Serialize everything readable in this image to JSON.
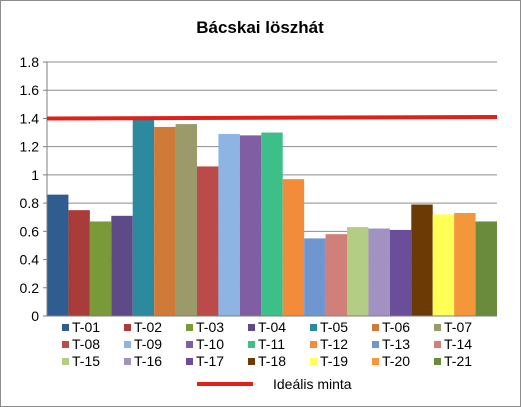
{
  "chart_data": {
    "type": "bar",
    "title": "Bácskai löszhát",
    "xlabel": "",
    "ylabel": "",
    "ylim": [
      0,
      1.8
    ],
    "yticks": [
      "0",
      "0.2",
      "0.4",
      "0.6",
      "0.8",
      "1",
      "1.2",
      "1.4",
      "1.6",
      "1.8"
    ],
    "grid": true,
    "legend_position": "bottom",
    "series": [
      {
        "name": "T-01",
        "value": 0.86,
        "color": "#2f5d8f"
      },
      {
        "name": "T-02",
        "value": 0.75,
        "color": "#a93c3a"
      },
      {
        "name": "T-03",
        "value": 0.67,
        "color": "#7a9a3a"
      },
      {
        "name": "T-04",
        "value": 0.71,
        "color": "#5e4a87"
      },
      {
        "name": "T-05",
        "value": 1.4,
        "color": "#2c8a9e"
      },
      {
        "name": "T-06",
        "value": 1.34,
        "color": "#d07a3a"
      },
      {
        "name": "T-07",
        "value": 1.36,
        "color": "#9a9a6a"
      },
      {
        "name": "T-08",
        "value": 1.06,
        "color": "#bb4a4a"
      },
      {
        "name": "T-09",
        "value": 1.29,
        "color": "#8db4e2"
      },
      {
        "name": "T-10",
        "value": 1.28,
        "color": "#7f5ea3"
      },
      {
        "name": "T-11",
        "value": 1.3,
        "color": "#3dbf8a"
      },
      {
        "name": "T-12",
        "value": 0.97,
        "color": "#f28c3a"
      },
      {
        "name": "T-13",
        "value": 0.55,
        "color": "#6f96cf"
      },
      {
        "name": "T-14",
        "value": 0.58,
        "color": "#d08078"
      },
      {
        "name": "T-15",
        "value": 0.63,
        "color": "#b3cd85"
      },
      {
        "name": "T-16",
        "value": 0.62,
        "color": "#a292c2"
      },
      {
        "name": "T-17",
        "value": 0.61,
        "color": "#6b4e99"
      },
      {
        "name": "T-18",
        "value": 0.79,
        "color": "#6b3a05"
      },
      {
        "name": "T-19",
        "value": 0.72,
        "color": "#ffff55"
      },
      {
        "name": "T-20",
        "value": 0.73,
        "color": "#f4973a"
      },
      {
        "name": "T-21",
        "value": 0.67,
        "color": "#6a8a3c"
      }
    ],
    "reference_line": {
      "name": "Ideális minta",
      "y_start": 1.4,
      "y_end": 1.41,
      "color": "#e0201b"
    }
  }
}
